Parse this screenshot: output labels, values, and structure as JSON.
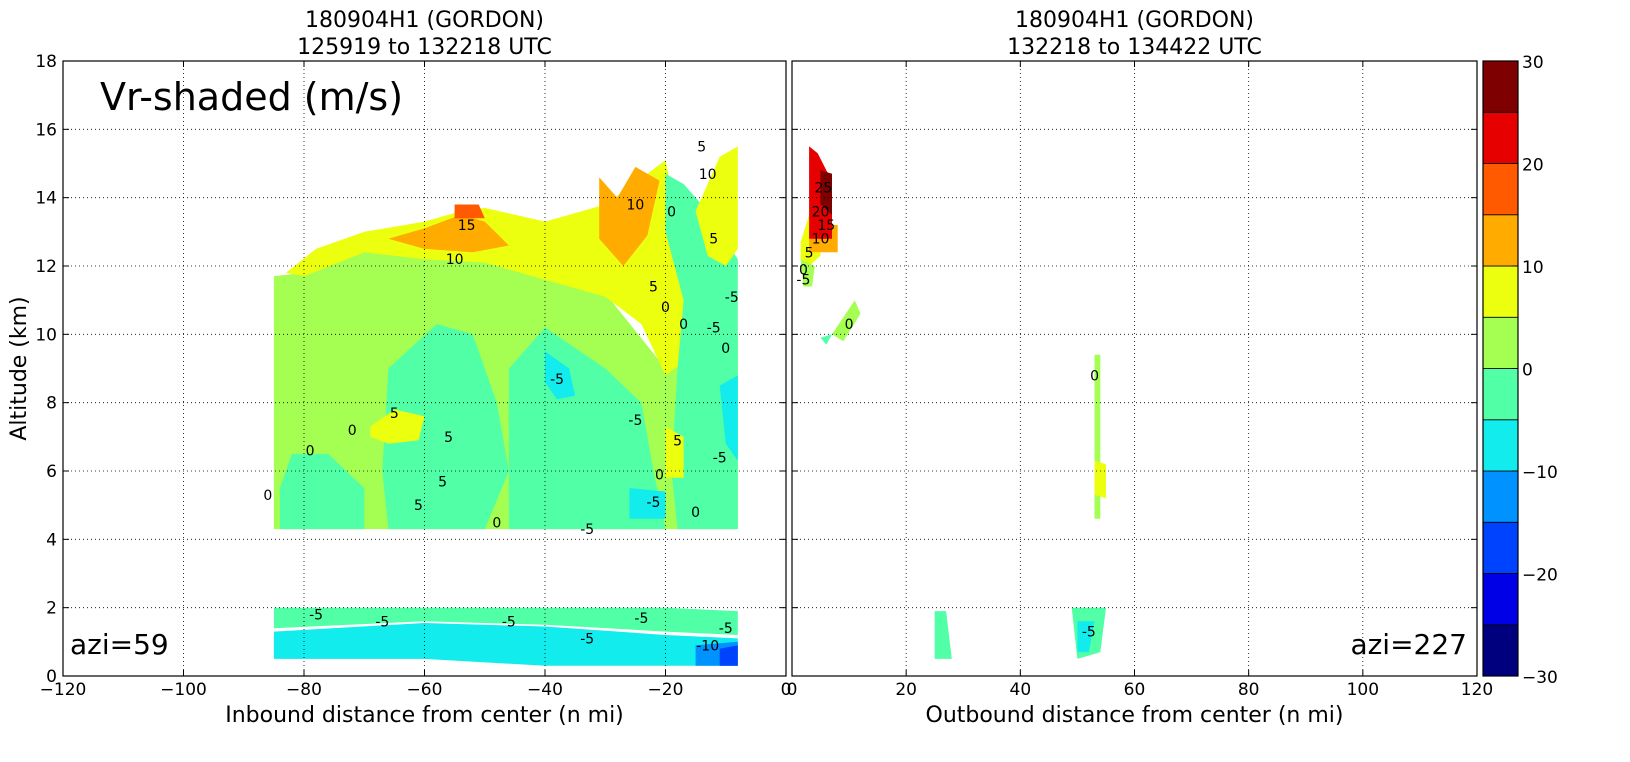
{
  "chart_data": [
    {
      "type": "heatmap",
      "title": "180904H1 (GORDON)",
      "subtitle": "125919 to 132218 UTC",
      "xlabel": "Inbound distance from center (n mi)",
      "ylabel": "Altitude (km)",
      "xlim": [
        -120,
        0
      ],
      "ylim": [
        0,
        18
      ],
      "xticks": [
        "−120",
        "−100",
        "−80",
        "−60",
        "−40",
        "−20",
        "0"
      ],
      "yticks": [
        "0",
        "2",
        "4",
        "6",
        "8",
        "10",
        "12",
        "14",
        "16",
        "18"
      ],
      "grid": true,
      "annotation": "Vr-shaded (m/s)",
      "azimuth_label": "azi=59",
      "contour_labels": [
        {
          "text": "15",
          "x": -53,
          "y": 13.2
        },
        {
          "text": "10",
          "x": -55,
          "y": 12.2
        },
        {
          "text": "10",
          "x": -25,
          "y": 13.8
        },
        {
          "text": "10",
          "x": -13,
          "y": 14.7
        },
        {
          "text": "5",
          "x": -14,
          "y": 15.5
        },
        {
          "text": "5",
          "x": -12,
          "y": 12.8
        },
        {
          "text": "5",
          "x": -22,
          "y": 11.4
        },
        {
          "text": "5",
          "x": -65,
          "y": 7.7
        },
        {
          "text": "5",
          "x": -56,
          "y": 7.0
        },
        {
          "text": "5",
          "x": -57,
          "y": 5.7
        },
        {
          "text": "5",
          "x": -61,
          "y": 5.0
        },
        {
          "text": "5",
          "x": -18,
          "y": 6.9
        },
        {
          "text": "0",
          "x": -20,
          "y": 10.8
        },
        {
          "text": "0",
          "x": -17,
          "y": 10.3
        },
        {
          "text": "0",
          "x": -10,
          "y": 9.6
        },
        {
          "text": "0",
          "x": -72,
          "y": 7.2
        },
        {
          "text": "0",
          "x": -79,
          "y": 6.6
        },
        {
          "text": "0",
          "x": -86,
          "y": 5.3
        },
        {
          "text": "0",
          "x": -48,
          "y": 4.5
        },
        {
          "text": "0",
          "x": -21,
          "y": 5.9
        },
        {
          "text": "0",
          "x": -15,
          "y": 4.8
        },
        {
          "text": "0",
          "x": -19,
          "y": 13.6
        },
        {
          "text": "-5",
          "x": -38,
          "y": 8.7
        },
        {
          "text": "-5",
          "x": -9,
          "y": 11.1
        },
        {
          "text": "-5",
          "x": -12,
          "y": 10.2
        },
        {
          "text": "-5",
          "x": -25,
          "y": 7.5
        },
        {
          "text": "-5",
          "x": -11,
          "y": 6.4
        },
        {
          "text": "-5",
          "x": -22,
          "y": 5.1
        },
        {
          "text": "-5",
          "x": -33,
          "y": 4.3
        },
        {
          "text": "-5",
          "x": -78,
          "y": 1.8
        },
        {
          "text": "-5",
          "x": -67,
          "y": 1.6
        },
        {
          "text": "-5",
          "x": -46,
          "y": 1.6
        },
        {
          "text": "-5",
          "x": -33,
          "y": 1.1
        },
        {
          "text": "-5",
          "x": -24,
          "y": 1.7
        },
        {
          "text": "-5",
          "x": -10,
          "y": 1.4
        },
        {
          "text": "-10",
          "x": -13,
          "y": 0.9
        }
      ]
    },
    {
      "type": "heatmap",
      "title": "180904H1 (GORDON)",
      "subtitle": "132218 to 134422 UTC",
      "xlabel": "Outbound distance from center (n mi)",
      "xlim": [
        0,
        120
      ],
      "ylim": [
        0,
        18
      ],
      "xticks": [
        "0",
        "20",
        "40",
        "60",
        "80",
        "100",
        "120"
      ],
      "grid": true,
      "azimuth_label": "azi=227",
      "contour_labels": [
        {
          "text": "25",
          "x": 5.5,
          "y": 14.3
        },
        {
          "text": "20",
          "x": 5,
          "y": 13.6
        },
        {
          "text": "15",
          "x": 6,
          "y": 13.2
        },
        {
          "text": "10",
          "x": 5,
          "y": 12.8
        },
        {
          "text": "5",
          "x": 3,
          "y": 12.4
        },
        {
          "text": "0",
          "x": 2,
          "y": 11.9
        },
        {
          "text": "-5",
          "x": 2,
          "y": 11.6
        },
        {
          "text": "0",
          "x": 10,
          "y": 10.3
        },
        {
          "text": "0",
          "x": 53,
          "y": 8.8
        },
        {
          "text": "-5",
          "x": 52,
          "y": 1.3
        }
      ]
    }
  ],
  "colorbar": {
    "levels": [
      -30,
      -25,
      -20,
      -15,
      -10,
      -5,
      0,
      5,
      10,
      15,
      20,
      25,
      30
    ],
    "colors": [
      "#00007f",
      "#0000e6",
      "#0043ff",
      "#0093ff",
      "#12ecec",
      "#50ffa6",
      "#a4ff52",
      "#ecff0f",
      "#ffab00",
      "#ff5a00",
      "#e60000",
      "#7f0000"
    ],
    "tick_values": [
      -30,
      -20,
      -10,
      0,
      10,
      20,
      30
    ],
    "tick_labels": [
      "−30",
      "−20",
      "−10",
      "0",
      "10",
      "20",
      "30"
    ]
  }
}
